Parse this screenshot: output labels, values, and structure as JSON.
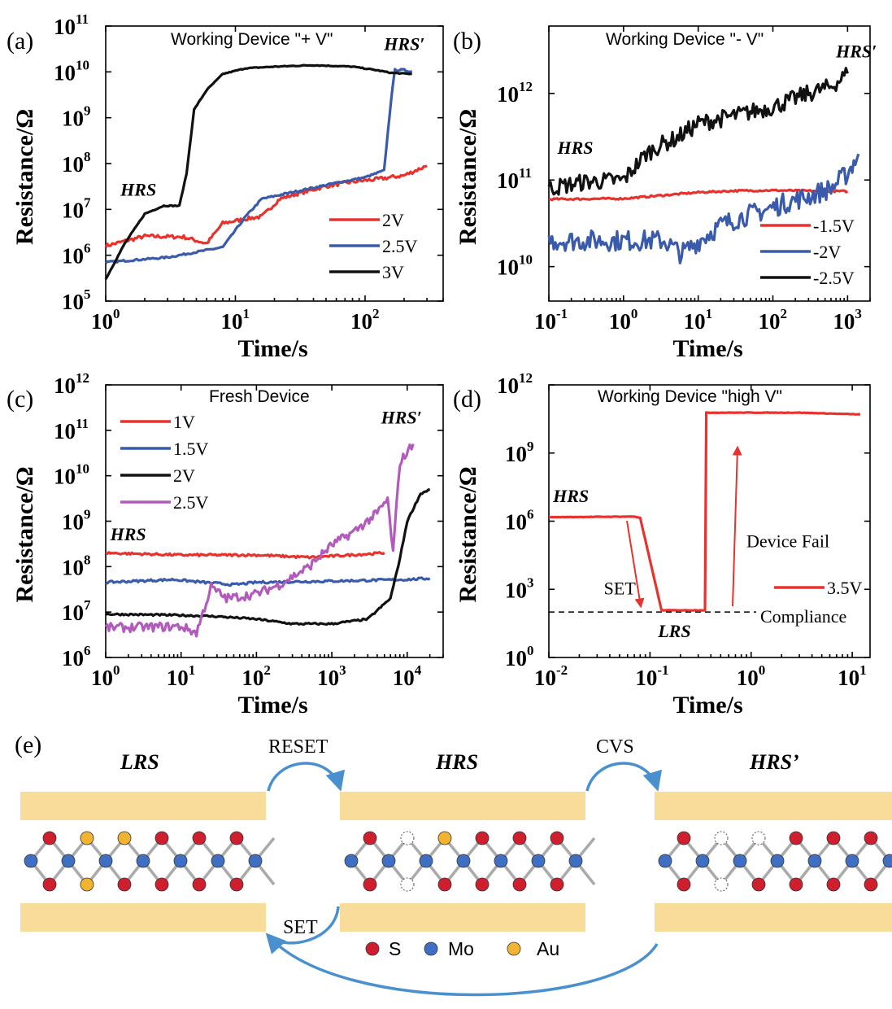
{
  "chart_data": [
    {
      "panel": "(a)",
      "type": "line",
      "title": "Working Device \"+ V\"",
      "xlabel": "Time/s",
      "ylabel": "Resistance/Ω",
      "xscale": "log",
      "yscale": "log",
      "xlim": [
        1,
        400
      ],
      "ylim": [
        100000,
        100000000000
      ],
      "xticks": [
        1,
        10,
        100
      ],
      "xtick_labels": [
        {
          "base": "10",
          "exp": "0"
        },
        {
          "base": "10",
          "exp": "1"
        },
        {
          "base": "10",
          "exp": "2"
        }
      ],
      "yticks": [
        100000,
        1000000,
        10000000,
        100000000,
        1000000000,
        10000000000,
        100000000000
      ],
      "ytick_labels": [
        {
          "base": "10",
          "exp": "5"
        },
        {
          "base": "10",
          "exp": "6"
        },
        {
          "base": "10",
          "exp": "7"
        },
        {
          "base": "10",
          "exp": "8"
        },
        {
          "base": "10",
          "exp": "9"
        },
        {
          "base": "10",
          "exp": "10"
        },
        {
          "base": "10",
          "exp": "11"
        }
      ],
      "legend_position": "bottom-right",
      "annotations": [
        {
          "text": "HRS",
          "x": 1.3,
          "y": 20000000
        },
        {
          "text": "HRS′",
          "x": 140,
          "y": 30000000000
        }
      ],
      "series": [
        {
          "name": "2V",
          "color": "#e8322d",
          "noise": 0.04,
          "x": [
            1,
            2,
            4,
            6,
            8,
            12,
            16,
            22,
            30,
            50,
            80,
            120,
            200,
            300
          ],
          "y": [
            1600000,
            2600000,
            2500000,
            1800000,
            5000000,
            6200000,
            7000000,
            17000000,
            22000000,
            32000000,
            40000000,
            45000000,
            55000000,
            90000000
          ]
        },
        {
          "name": "2.5V",
          "color": "#3a5bab",
          "noise": 0.02,
          "x": [
            1,
            3,
            8,
            12,
            16,
            30,
            60,
            100,
            140,
            150,
            160,
            170,
            200,
            230
          ],
          "y": [
            700000,
            900000,
            1500000,
            7000000,
            17000000,
            25000000,
            38000000,
            50000000,
            70000000,
            500000000,
            3000000000,
            11000000000,
            11000000000,
            10000000000
          ]
        },
        {
          "name": "3V",
          "color": "#111111",
          "noise": 0.01,
          "x": [
            1,
            1.4,
            2,
            2.8,
            3.7,
            4.2,
            4.8,
            6,
            8,
            12,
            20,
            40,
            80,
            120,
            160,
            230
          ],
          "y": [
            300000,
            1800000,
            8000000,
            12000000,
            12000000,
            60000000,
            1500000000,
            4000000000,
            9000000000,
            12000000000,
            13000000000,
            14000000000,
            13000000000,
            11000000000,
            9500000000,
            9000000000
          ]
        }
      ]
    },
    {
      "panel": "(b)",
      "type": "line",
      "title": "Working Device \"- V\"",
      "xlabel": "Time/s",
      "ylabel": "Resistance/Ω",
      "xscale": "log",
      "yscale": "log",
      "xlim": [
        0.1,
        2000
      ],
      "ylim": [
        4000000000,
        6000000000000
      ],
      "xticks": [
        0.1,
        1,
        10,
        100,
        1000
      ],
      "xtick_labels": [
        {
          "base": "10",
          "exp": "-1"
        },
        {
          "base": "10",
          "exp": "0"
        },
        {
          "base": "10",
          "exp": "1"
        },
        {
          "base": "10",
          "exp": "2"
        },
        {
          "base": "10",
          "exp": "3"
        }
      ],
      "yticks": [
        10000000000,
        100000000000,
        1000000000000
      ],
      "ytick_labels": [
        {
          "base": "10",
          "exp": "10"
        },
        {
          "base": "10",
          "exp": "11"
        },
        {
          "base": "10",
          "exp": "12"
        }
      ],
      "legend_position": "bottom-right",
      "annotations": [
        {
          "text": "HRS",
          "x": 0.13,
          "y": 200000000000
        },
        {
          "text": "HRS′",
          "x": 700,
          "y": 2600000000000
        }
      ],
      "series": [
        {
          "name": "-1.5V",
          "color": "#e8322d",
          "noise": 0.01,
          "x": [
            0.1,
            1,
            3,
            10,
            30,
            100,
            300,
            1000
          ],
          "y": [
            60000000000,
            61000000000,
            66000000000,
            72000000000,
            75000000000,
            76000000000,
            75000000000,
            74000000000
          ]
        },
        {
          "name": "-2V",
          "color": "#3a5bab",
          "noise": 0.12,
          "x": [
            0.1,
            0.5,
            2,
            3.5,
            6,
            8,
            12,
            20,
            40,
            80,
            150,
            300,
            600,
            1000,
            1400
          ],
          "y": [
            20000000000,
            20000000000,
            20000000000,
            20000000000,
            14000000000,
            17000000000,
            22000000000,
            30000000000,
            38000000000,
            45000000000,
            55000000000,
            65000000000,
            80000000000,
            120000000000,
            200000000000
          ]
        },
        {
          "name": "-2.5V",
          "color": "#111111",
          "noise": 0.1,
          "x": [
            0.1,
            0.3,
            1,
            2,
            3,
            5,
            10,
            30,
            100,
            300,
            600,
            1000
          ],
          "y": [
            80000000000,
            95000000000,
            100000000000,
            200000000000,
            250000000000,
            300000000000,
            450000000000,
            550000000000,
            700000000000,
            1000000000000,
            1200000000000,
            1700000000000
          ]
        }
      ]
    },
    {
      "panel": "(c)",
      "type": "line",
      "title": "Fresh Device",
      "xlabel": "Time/s",
      "ylabel": "Resistance/Ω",
      "xscale": "log",
      "yscale": "log",
      "xlim": [
        1,
        30000
      ],
      "ylim": [
        1000000,
        1000000000000
      ],
      "xticks": [
        1,
        10,
        100,
        1000,
        10000
      ],
      "xtick_labels": [
        {
          "base": "10",
          "exp": "0"
        },
        {
          "base": "10",
          "exp": "1"
        },
        {
          "base": "10",
          "exp": "2"
        },
        {
          "base": "10",
          "exp": "3"
        },
        {
          "base": "10",
          "exp": "4"
        }
      ],
      "yticks": [
        1000000,
        10000000,
        100000000,
        1000000000,
        10000000000,
        100000000000,
        1000000000000
      ],
      "ytick_labels": [
        {
          "base": "10",
          "exp": "6"
        },
        {
          "base": "10",
          "exp": "7"
        },
        {
          "base": "10",
          "exp": "8"
        },
        {
          "base": "10",
          "exp": "9"
        },
        {
          "base": "10",
          "exp": "10"
        },
        {
          "base": "10",
          "exp": "11"
        },
        {
          "base": "10",
          "exp": "12"
        }
      ],
      "legend_position": "top-left",
      "annotations": [
        {
          "text": "HRS",
          "x": 1.15,
          "y": 380000000
        },
        {
          "text": "HRS′",
          "x": 4500,
          "y": 140000000000
        }
      ],
      "series": [
        {
          "name": "1V",
          "color": "#e8322d",
          "noise": 0.025,
          "x": [
            1,
            10,
            100,
            500,
            1000,
            3000,
            5000
          ],
          "y": [
            200000000,
            180000000,
            180000000,
            160000000,
            170000000,
            190000000,
            200000000
          ]
        },
        {
          "name": "1.5V",
          "color": "#3a5bab",
          "noise": 0.025,
          "x": [
            1,
            8,
            20,
            50,
            100,
            1000,
            10000,
            20000
          ],
          "y": [
            45000000,
            52000000,
            45000000,
            40000000,
            45000000,
            48000000,
            52000000,
            55000000
          ]
        },
        {
          "name": "2V",
          "color": "#111111",
          "noise": 0.02,
          "x": [
            1,
            10,
            30,
            100,
            300,
            1000,
            3000,
            6000,
            8000,
            10000,
            15000,
            20000
          ],
          "y": [
            9000000,
            8500000,
            8000000,
            7000000,
            5500000,
            5500000,
            7000000,
            20000000,
            150000000,
            1000000000,
            4000000000,
            5000000000
          ]
        },
        {
          "name": "2.5V",
          "color": "#b25bbd",
          "noise": 0.1,
          "x": [
            1,
            10,
            16,
            25,
            40,
            100,
            200,
            300,
            500,
            1000,
            2000,
            4000,
            5500,
            6500,
            8000,
            12000
          ],
          "y": [
            4500000,
            4800000,
            3500000,
            35000000,
            20000000,
            25000000,
            40000000,
            60000000,
            100000000,
            300000000,
            600000000,
            1500000000,
            3000000000,
            200000000,
            20000000000,
            50000000000
          ]
        }
      ]
    },
    {
      "panel": "(d)",
      "type": "line",
      "title": "Working Device \"high V\"",
      "xlabel": "Time/s",
      "ylabel": "Resistance/Ω",
      "xscale": "log",
      "yscale": "log",
      "xlim": [
        0.01,
        15
      ],
      "ylim": [
        1,
        1000000000000
      ],
      "xticks": [
        0.01,
        0.1,
        1,
        10
      ],
      "xtick_labels": [
        {
          "base": "10",
          "exp": "-2"
        },
        {
          "base": "10",
          "exp": "-1"
        },
        {
          "base": "10",
          "exp": "0"
        },
        {
          "base": "10",
          "exp": "1"
        }
      ],
      "yticks": [
        1,
        1000,
        1000000,
        1000000000,
        1000000000000
      ],
      "ytick_labels": [
        {
          "base": "10",
          "exp": "0"
        },
        {
          "base": "10",
          "exp": "3"
        },
        {
          "base": "10",
          "exp": "6"
        },
        {
          "base": "10",
          "exp": "9"
        },
        {
          "base": "10",
          "exp": "12"
        }
      ],
      "legend_position": "right",
      "compliance": {
        "label": "Compliance",
        "y": 100
      },
      "annotations": [
        {
          "text": "HRS",
          "x": 0.011,
          "y": 7000000
        },
        {
          "text": "LRS",
          "x": 0.12,
          "y": 8
        },
        {
          "text": "SET",
          "x": 0.035,
          "y": 600
        },
        {
          "text": "Device Fail",
          "x": 0.9,
          "y": 70000
        }
      ],
      "series": [
        {
          "name": "3.5V",
          "color": "#e8322d",
          "noise": 0.01,
          "x": [
            0.01,
            0.07,
            0.08,
            0.13,
            0.35,
            0.36,
            3,
            12
          ],
          "y": [
            1500000,
            1600000,
            1400000,
            120,
            120,
            60000000000,
            60000000000,
            50000000000
          ]
        }
      ]
    }
  ],
  "labels": {
    "a": "(a)",
    "b": "(b)",
    "c": "(c)",
    "d": "(d)",
    "e": "(e)"
  },
  "schematic": {
    "states": [
      "LRS",
      "HRS",
      "HRS’"
    ],
    "arrows": {
      "reset": "RESET",
      "cvs": "CVS",
      "set": "SET"
    },
    "legend": [
      {
        "label": "S",
        "color": "#cf1f2e"
      },
      {
        "label": "Mo",
        "color": "#3f6fc2"
      },
      {
        "label": "Au",
        "color": "#f2b430"
      }
    ],
    "electrode_color": "#f9dc9a",
    "arrow_color": "#4a90cf"
  }
}
